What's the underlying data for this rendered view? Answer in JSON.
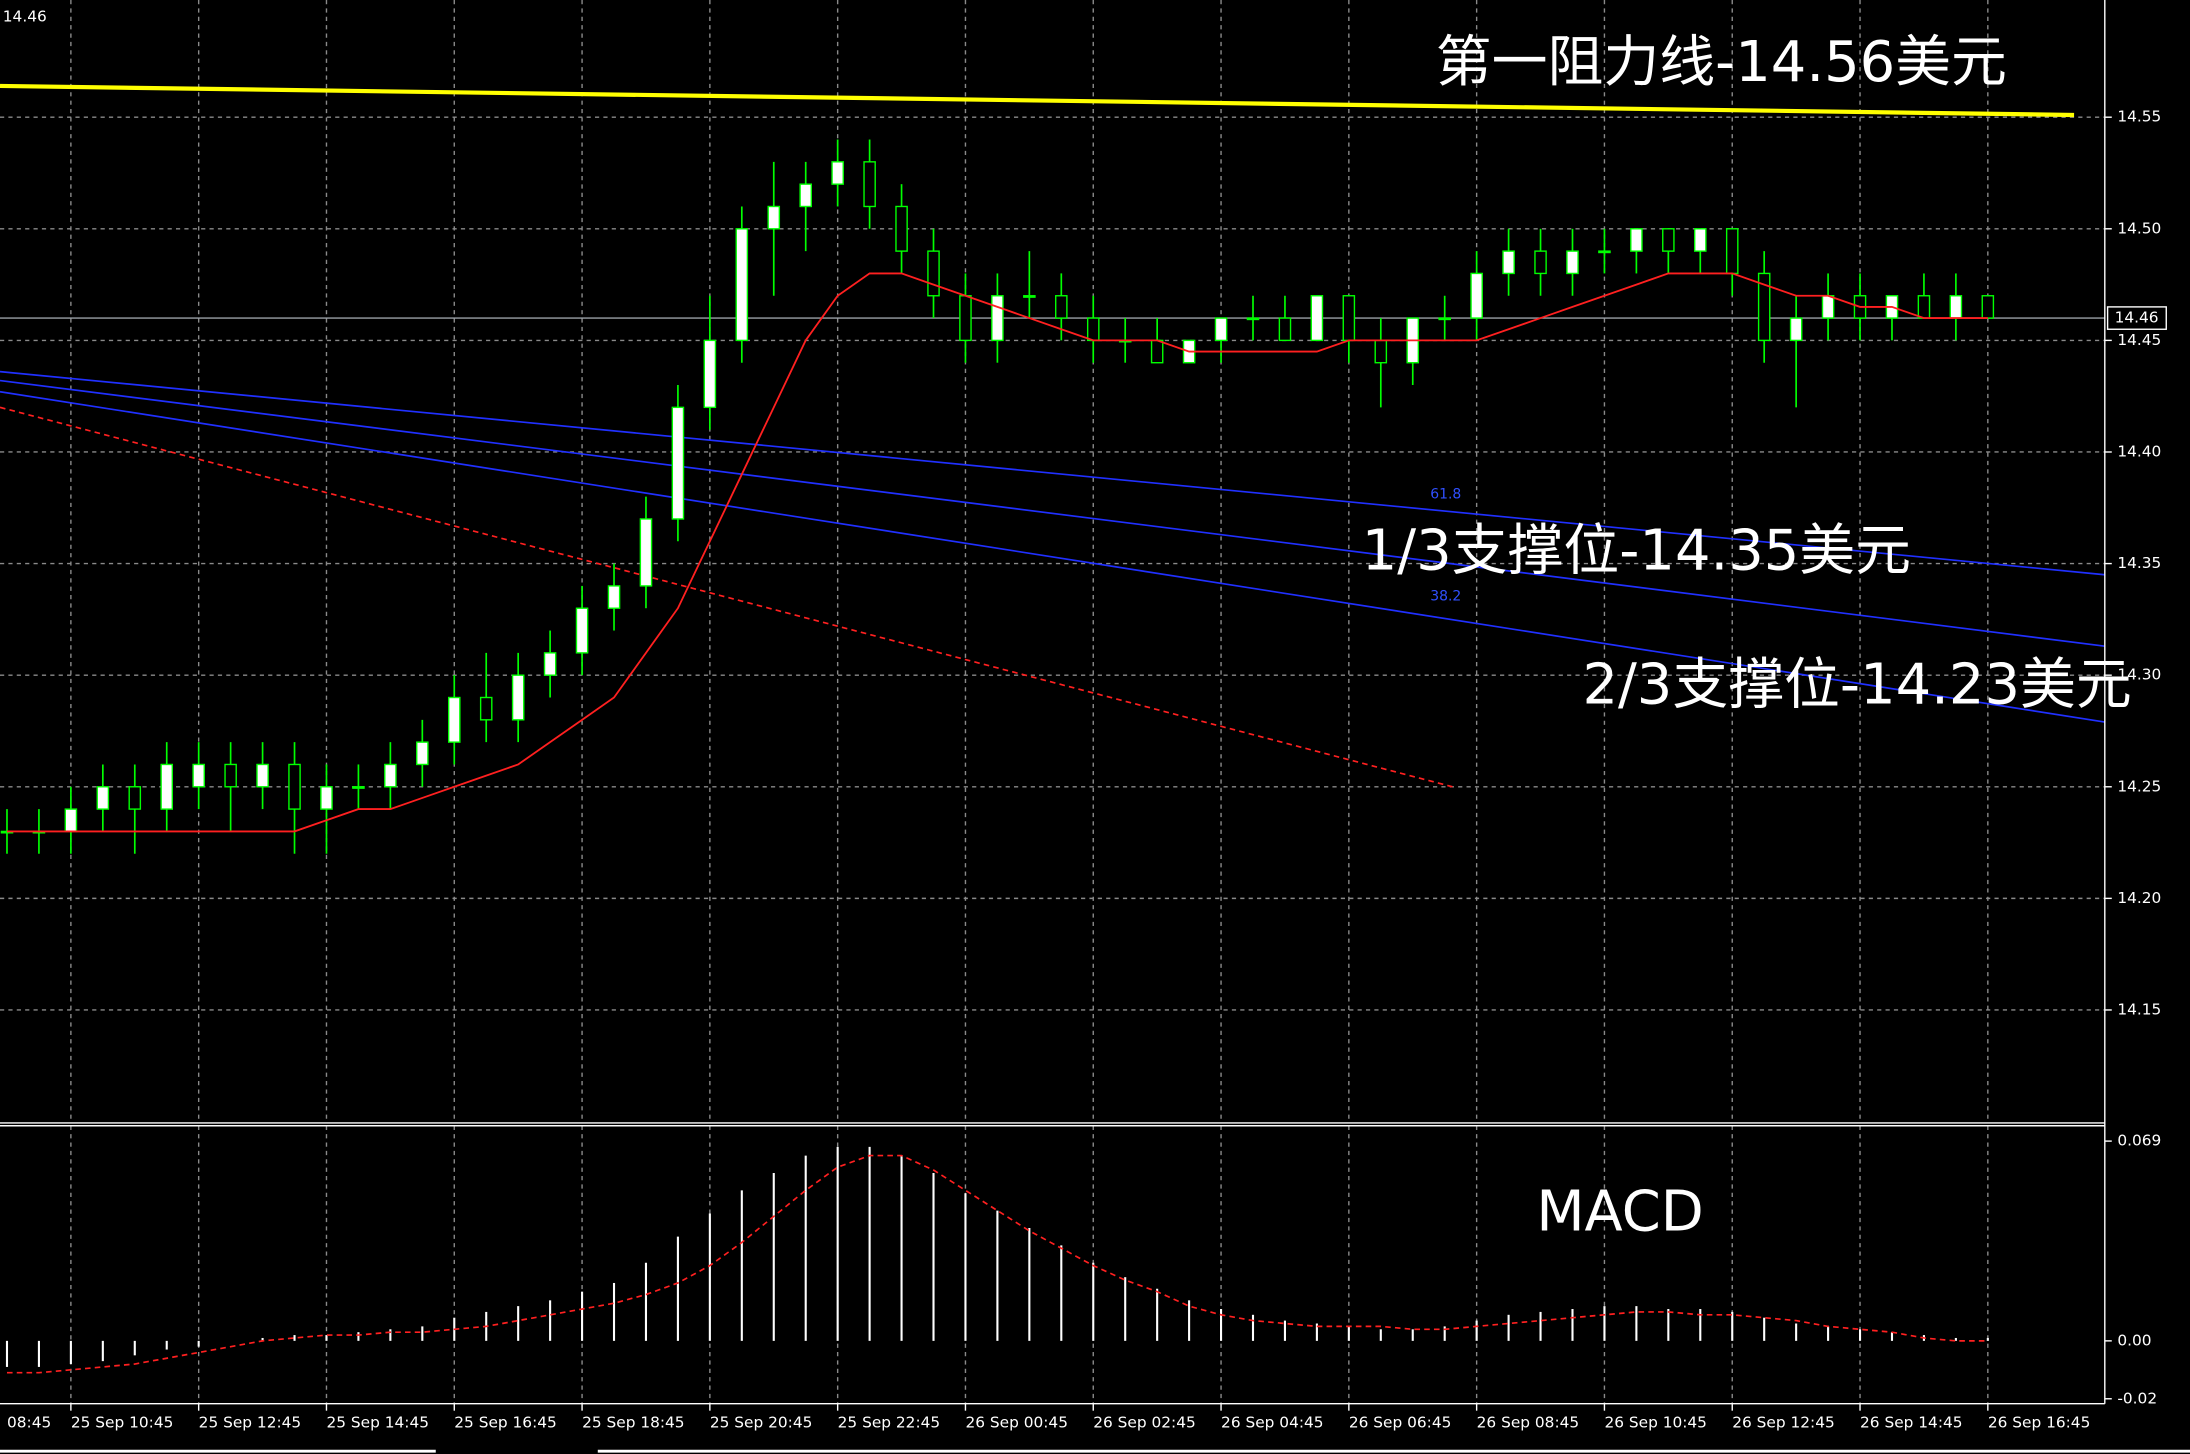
{
  "chart_data": [
    {
      "type": "candlestick",
      "corner_label": "14.46",
      "last_price": 14.46,
      "first_x_label": "08:45",
      "categories": [
        null,
        null,
        "25 Sep 10:45",
        null,
        null,
        null,
        "25 Sep 12:45",
        null,
        null,
        null,
        "25 Sep 14:45",
        null,
        null,
        null,
        "25 Sep 16:45",
        null,
        null,
        null,
        "25 Sep 18:45",
        null,
        null,
        null,
        "25 Sep 20:45",
        null,
        null,
        null,
        "25 Sep 22:45",
        null,
        null,
        null,
        "26 Sep 00:45",
        null,
        null,
        null,
        "26 Sep 02:45",
        null,
        null,
        null,
        "26 Sep 04:45",
        null,
        null,
        null,
        "26 Sep 06:45",
        null,
        null,
        null,
        "26 Sep 08:45",
        null,
        null,
        null,
        "26 Sep 10:45",
        null,
        null,
        null,
        "26 Sep 12:45",
        null,
        null,
        null,
        "26 Sep 14:45",
        null,
        null,
        null,
        "26 Sep 16:45"
      ],
      "open": [
        14.23,
        14.23,
        14.23,
        14.24,
        14.25,
        14.24,
        14.25,
        14.26,
        14.25,
        14.26,
        14.24,
        14.25,
        14.25,
        14.26,
        14.27,
        14.29,
        14.28,
        14.3,
        14.31,
        14.33,
        14.34,
        14.37,
        14.42,
        14.45,
        14.5,
        14.51,
        14.52,
        14.53,
        14.51,
        14.49,
        14.47,
        14.45,
        14.47,
        14.47,
        14.46,
        14.45,
        14.45,
        14.44,
        14.45,
        14.46,
        14.46,
        14.45,
        14.47,
        14.45,
        14.44,
        14.46,
        14.46,
        14.48,
        14.49,
        14.48,
        14.49,
        14.49,
        14.5,
        14.49,
        14.5,
        14.48,
        14.45,
        14.46,
        14.47,
        14.46,
        14.47,
        14.46,
        14.47
      ],
      "high": [
        14.24,
        14.24,
        14.25,
        14.26,
        14.26,
        14.27,
        14.27,
        14.27,
        14.27,
        14.27,
        14.26,
        14.26,
        14.27,
        14.28,
        14.3,
        14.31,
        14.31,
        14.32,
        14.34,
        14.35,
        14.38,
        14.43,
        14.47,
        14.51,
        14.53,
        14.53,
        14.54,
        14.54,
        14.52,
        14.5,
        14.48,
        14.48,
        14.49,
        14.48,
        14.47,
        14.46,
        14.46,
        14.45,
        14.46,
        14.47,
        14.47,
        14.47,
        14.47,
        14.46,
        14.46,
        14.47,
        14.49,
        14.5,
        14.5,
        14.5,
        14.5,
        14.5,
        14.5,
        14.5,
        14.5,
        14.49,
        14.47,
        14.48,
        14.48,
        14.47,
        14.48,
        14.48,
        14.47
      ],
      "low": [
        14.22,
        14.22,
        14.22,
        14.23,
        14.22,
        14.23,
        14.24,
        14.23,
        14.24,
        14.22,
        14.22,
        14.24,
        14.24,
        14.25,
        14.26,
        14.27,
        14.27,
        14.29,
        14.3,
        14.32,
        14.33,
        14.36,
        14.41,
        14.44,
        14.47,
        14.49,
        14.51,
        14.5,
        14.48,
        14.46,
        14.44,
        14.44,
        14.46,
        14.45,
        14.44,
        14.44,
        14.44,
        14.44,
        14.44,
        14.45,
        14.45,
        14.45,
        14.44,
        14.42,
        14.43,
        14.45,
        14.45,
        14.47,
        14.47,
        14.47,
        14.48,
        14.48,
        14.48,
        14.48,
        14.47,
        14.44,
        14.42,
        14.45,
        14.45,
        14.45,
        14.46,
        14.45,
        14.46
      ],
      "close": [
        14.23,
        14.23,
        14.24,
        14.25,
        14.24,
        14.26,
        14.26,
        14.25,
        14.26,
        14.24,
        14.25,
        14.25,
        14.26,
        14.27,
        14.29,
        14.28,
        14.3,
        14.31,
        14.33,
        14.34,
        14.37,
        14.42,
        14.45,
        14.5,
        14.51,
        14.52,
        14.53,
        14.51,
        14.49,
        14.47,
        14.45,
        14.47,
        14.47,
        14.46,
        14.45,
        14.45,
        14.44,
        14.45,
        14.46,
        14.46,
        14.45,
        14.47,
        14.45,
        14.44,
        14.46,
        14.46,
        14.48,
        14.49,
        14.48,
        14.49,
        14.49,
        14.5,
        14.49,
        14.5,
        14.48,
        14.45,
        14.46,
        14.47,
        14.46,
        14.47,
        14.46,
        14.47,
        14.46
      ],
      "candle_color": "#00ff00",
      "ma": {
        "color": "#ff2020",
        "values": [
          14.23,
          14.23,
          14.23,
          14.23,
          14.23,
          14.23,
          14.23,
          14.23,
          14.23,
          14.23,
          14.235,
          14.24,
          14.24,
          14.245,
          14.25,
          14.255,
          14.26,
          14.27,
          14.28,
          14.29,
          14.31,
          14.33,
          14.36,
          14.39,
          14.42,
          14.45,
          14.47,
          14.48,
          14.48,
          14.475,
          14.47,
          14.465,
          14.46,
          14.455,
          14.45,
          14.45,
          14.45,
          14.445,
          14.445,
          14.445,
          14.445,
          14.445,
          14.45,
          14.45,
          14.45,
          14.45,
          14.45,
          14.455,
          14.46,
          14.465,
          14.47,
          14.475,
          14.48,
          14.48,
          14.48,
          14.475,
          14.47,
          14.47,
          14.465,
          14.465,
          14.46,
          14.46,
          14.46
        ]
      },
      "lines": [
        {
          "color": "#ffff00",
          "values": [
            14.564,
            14.551
          ]
        },
        {
          "color": "#2030ff",
          "values": [
            14.436,
            14.345
          ]
        },
        {
          "color": "#2030ff",
          "values": [
            14.432,
            14.313
          ]
        },
        {
          "color": "#2030ff",
          "values": [
            14.427,
            14.279
          ]
        },
        {
          "color": "#ff2020",
          "dashed": true,
          "values": [
            14.42,
            14.25
          ]
        }
      ],
      "fib_labels": [
        "61.8",
        "38.2"
      ],
      "annotations": [
        "第一阻力线-14.56美元",
        "1/3支撑位-14.35美元",
        "2/3支撑位-14.23美元"
      ],
      "ylim": [
        14.1,
        14.6025
      ],
      "yticks": [
        14.15,
        {
          "value": 14.2,
          "label": "14.20"
        },
        14.25,
        {
          "value": 14.3,
          "label": "14.30"
        },
        14.35,
        {
          "value": 14.4,
          "label": "14.40"
        },
        14.45,
        {
          "value": 14.5,
          "label": "14.50"
        },
        14.55
      ],
      "grid": true
    },
    {
      "type": "macd",
      "title": "MACD",
      "values": [
        -0.009,
        -0.009,
        -0.008,
        -0.007,
        -0.005,
        -0.003,
        -0.002,
        0.0,
        0.001,
        0.002,
        0.002,
        0.003,
        0.004,
        0.005,
        0.008,
        0.01,
        0.012,
        0.014,
        0.017,
        0.02,
        0.027,
        0.036,
        0.044,
        0.052,
        0.058,
        0.064,
        0.067,
        0.067,
        0.064,
        0.058,
        0.051,
        0.045,
        0.039,
        0.033,
        0.027,
        0.022,
        0.018,
        0.014,
        0.011,
        0.009,
        0.007,
        0.006,
        0.005,
        0.004,
        0.004,
        0.005,
        0.007,
        0.009,
        0.01,
        0.011,
        0.012,
        0.012,
        0.011,
        0.011,
        0.01,
        0.008,
        0.006,
        0.005,
        0.004,
        0.003,
        0.002,
        0.001,
        0.001
      ],
      "color": "#ffffff",
      "signal": {
        "color": "#ff2020",
        "values": [
          -0.011,
          -0.011,
          -0.01,
          -0.009,
          -0.008,
          -0.006,
          -0.004,
          -0.002,
          0.0,
          0.001,
          0.002,
          0.002,
          0.003,
          0.003,
          0.004,
          0.005,
          0.007,
          0.009,
          0.011,
          0.013,
          0.016,
          0.02,
          0.026,
          0.034,
          0.043,
          0.052,
          0.06,
          0.064,
          0.064,
          0.059,
          0.052,
          0.045,
          0.038,
          0.032,
          0.026,
          0.021,
          0.017,
          0.012,
          0.009,
          0.007,
          0.006,
          0.005,
          0.005,
          0.005,
          0.004,
          0.004,
          0.005,
          0.006,
          0.007,
          0.008,
          0.009,
          0.01,
          0.01,
          0.009,
          0.009,
          0.008,
          0.007,
          0.005,
          0.004,
          0.003,
          0.001,
          0.0,
          0.0
        ]
      },
      "ylim": [
        -0.0217,
        0.0743
      ],
      "yticks": [
        0.069,
        {
          "value": 0,
          "label": "0.00"
        },
        -0.02
      ]
    }
  ]
}
